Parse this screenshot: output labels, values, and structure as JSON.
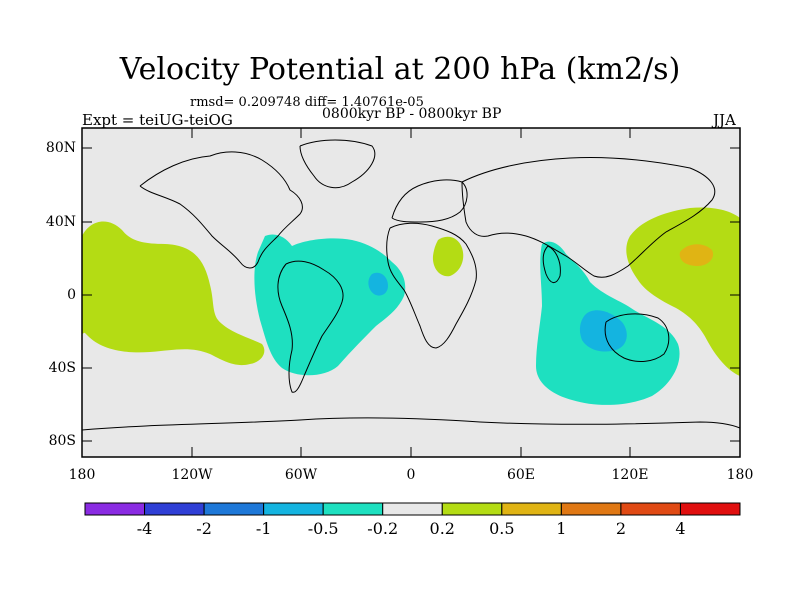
{
  "title": "Velocity Potential at 200 hPa (km2/s)",
  "stats_line": "rmsd= 0.209748 diff= 1.40761e-05",
  "left_label": "Expt = teiUG-teiOG",
  "center_label": "0800kyr BP - 0800kyr BP",
  "right_label": "JJA",
  "lat_ticks": [
    "80N",
    "40N",
    "0",
    "40S",
    "80S"
  ],
  "lon_ticks": [
    "180",
    "120W",
    "60W",
    "0",
    "60E",
    "120E",
    "180"
  ],
  "colorbar": {
    "labels": [
      "-4",
      "-2",
      "-1",
      "-0.5",
      "-0.2",
      "0.2",
      "0.5",
      "1",
      "2",
      "4"
    ],
    "colors": [
      "#8a2be2",
      "#2f3fd6",
      "#1e78d8",
      "#14b4e0",
      "#1ee0c0",
      "#e8e8e8",
      "#b4dc14",
      "#e0b414",
      "#e07814",
      "#e04a14",
      "#e00f0f"
    ]
  },
  "palette": {
    "ocean_bg": "#e8e8e8",
    "negative_weak": "#1ee0c0",
    "negative_mid": "#14b4e0",
    "positive_weak": "#b4dc14",
    "positive_mid": "#e0b414"
  }
}
